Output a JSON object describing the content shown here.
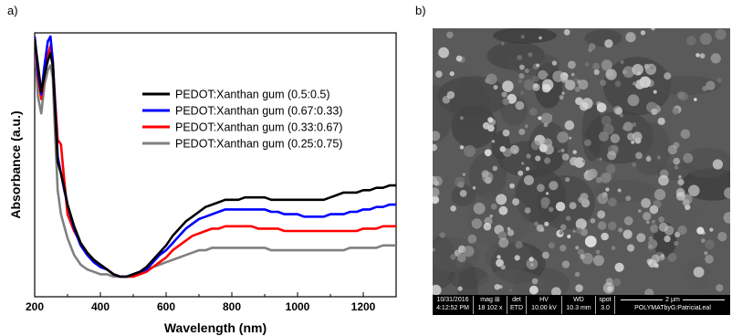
{
  "panels": {
    "a_label": "a)",
    "b_label": "b)"
  },
  "chart_data": {
    "type": "line",
    "xlabel": "Wavelength (nm)",
    "ylabel": "Absorbance (a.u.)",
    "xlim": [
      200,
      1300
    ],
    "ylim": [
      0,
      1
    ],
    "xticks": [
      200,
      400,
      600,
      800,
      1000,
      1200
    ],
    "yticks": [],
    "legend_position": "upper-right",
    "series": [
      {
        "name": "PEDOT:Xanthan gum (0.5:0.5)",
        "color": "#000000",
        "x": [
          200,
          210,
          220,
          230,
          240,
          248,
          255,
          262,
          270,
          280,
          290,
          300,
          320,
          340,
          360,
          380,
          400,
          420,
          440,
          460,
          480,
          500,
          520,
          540,
          560,
          580,
          600,
          620,
          640,
          660,
          680,
          700,
          720,
          740,
          760,
          780,
          800,
          820,
          840,
          860,
          880,
          900,
          920,
          940,
          960,
          980,
          1000,
          1020,
          1040,
          1060,
          1080,
          1100,
          1120,
          1140,
          1160,
          1180,
          1200,
          1220,
          1240,
          1260,
          1280,
          1300
        ],
        "y": [
          0.99,
          0.88,
          0.77,
          0.84,
          0.9,
          0.93,
          0.88,
          0.7,
          0.48,
          0.43,
          0.37,
          0.3,
          0.21,
          0.14,
          0.1,
          0.07,
          0.05,
          0.03,
          0.01,
          0.0,
          0.0,
          0.01,
          0.02,
          0.04,
          0.07,
          0.1,
          0.13,
          0.17,
          0.2,
          0.23,
          0.25,
          0.27,
          0.29,
          0.3,
          0.31,
          0.32,
          0.32,
          0.32,
          0.33,
          0.33,
          0.33,
          0.33,
          0.32,
          0.32,
          0.32,
          0.32,
          0.32,
          0.32,
          0.32,
          0.32,
          0.32,
          0.33,
          0.34,
          0.35,
          0.35,
          0.35,
          0.36,
          0.36,
          0.37,
          0.37,
          0.38,
          0.38
        ]
      },
      {
        "name": "PEDOT:Xanthan gum (0.67:0.33)",
        "color": "#0000ff",
        "x": [
          200,
          210,
          220,
          230,
          240,
          248,
          255,
          262,
          270,
          280,
          290,
          300,
          320,
          340,
          360,
          380,
          400,
          420,
          440,
          460,
          480,
          500,
          520,
          540,
          560,
          580,
          600,
          620,
          640,
          660,
          680,
          700,
          720,
          740,
          760,
          780,
          800,
          820,
          840,
          860,
          880,
          900,
          920,
          940,
          960,
          980,
          1000,
          1020,
          1040,
          1060,
          1080,
          1100,
          1120,
          1140,
          1160,
          1180,
          1200,
          1220,
          1240,
          1260,
          1280,
          1300
        ],
        "y": [
          1.0,
          0.85,
          0.76,
          0.88,
          0.98,
          1.0,
          0.9,
          0.72,
          0.5,
          0.43,
          0.36,
          0.3,
          0.2,
          0.13,
          0.09,
          0.06,
          0.04,
          0.03,
          0.01,
          0.0,
          0.0,
          0.01,
          0.02,
          0.03,
          0.06,
          0.09,
          0.11,
          0.14,
          0.17,
          0.2,
          0.22,
          0.24,
          0.25,
          0.26,
          0.27,
          0.28,
          0.28,
          0.28,
          0.28,
          0.28,
          0.28,
          0.28,
          0.27,
          0.27,
          0.26,
          0.26,
          0.26,
          0.25,
          0.25,
          0.25,
          0.25,
          0.26,
          0.26,
          0.26,
          0.27,
          0.27,
          0.28,
          0.28,
          0.29,
          0.29,
          0.3,
          0.3
        ]
      },
      {
        "name": "PEDOT:Xanthan gum (0.33:0.67)",
        "color": "#ff0000",
        "x": [
          200,
          210,
          220,
          230,
          240,
          248,
          255,
          262,
          270,
          280,
          290,
          300,
          320,
          340,
          360,
          380,
          400,
          420,
          440,
          460,
          480,
          500,
          520,
          540,
          560,
          580,
          600,
          620,
          640,
          660,
          680,
          700,
          720,
          740,
          760,
          780,
          800,
          820,
          840,
          860,
          880,
          900,
          920,
          940,
          960,
          980,
          1000,
          1020,
          1040,
          1060,
          1080,
          1100,
          1120,
          1140,
          1160,
          1180,
          1200,
          1220,
          1240,
          1260,
          1280,
          1300
        ],
        "y": [
          0.99,
          0.83,
          0.74,
          0.85,
          0.92,
          0.96,
          0.9,
          0.74,
          0.57,
          0.55,
          0.4,
          0.26,
          0.19,
          0.14,
          0.1,
          0.07,
          0.05,
          0.03,
          0.01,
          0.0,
          0.0,
          0.0,
          0.01,
          0.02,
          0.04,
          0.06,
          0.08,
          0.11,
          0.13,
          0.15,
          0.17,
          0.18,
          0.19,
          0.2,
          0.2,
          0.21,
          0.21,
          0.21,
          0.21,
          0.21,
          0.2,
          0.2,
          0.2,
          0.2,
          0.19,
          0.19,
          0.19,
          0.19,
          0.19,
          0.19,
          0.19,
          0.19,
          0.19,
          0.19,
          0.19,
          0.19,
          0.2,
          0.2,
          0.2,
          0.21,
          0.21,
          0.21
        ]
      },
      {
        "name": "PEDOT:Xanthan gum (0.25:0.75)",
        "color": "#808080",
        "x": [
          200,
          210,
          220,
          230,
          240,
          248,
          255,
          262,
          270,
          280,
          290,
          300,
          320,
          340,
          360,
          380,
          400,
          420,
          440,
          460,
          480,
          500,
          520,
          540,
          560,
          580,
          600,
          620,
          640,
          660,
          680,
          700,
          720,
          740,
          760,
          780,
          800,
          820,
          840,
          860,
          880,
          900,
          920,
          940,
          960,
          980,
          1000,
          1020,
          1040,
          1060,
          1080,
          1100,
          1120,
          1140,
          1160,
          1180,
          1200,
          1220,
          1240,
          1260,
          1280,
          1300
        ],
        "y": [
          0.97,
          0.75,
          0.68,
          0.8,
          0.86,
          0.88,
          0.83,
          0.6,
          0.36,
          0.26,
          0.21,
          0.16,
          0.09,
          0.05,
          0.03,
          0.02,
          0.01,
          0.01,
          0.0,
          0.0,
          0.0,
          0.01,
          0.02,
          0.03,
          0.04,
          0.05,
          0.06,
          0.07,
          0.08,
          0.09,
          0.1,
          0.11,
          0.11,
          0.12,
          0.12,
          0.12,
          0.12,
          0.12,
          0.12,
          0.12,
          0.12,
          0.12,
          0.11,
          0.11,
          0.11,
          0.11,
          0.11,
          0.11,
          0.11,
          0.11,
          0.11,
          0.11,
          0.11,
          0.11,
          0.12,
          0.12,
          0.12,
          0.12,
          0.12,
          0.13,
          0.13,
          0.13
        ]
      }
    ]
  },
  "sem_databar": {
    "date": "10/31/2016",
    "time": "4:12:52 PM",
    "mag_label": "mag ⊞",
    "mag_value": "18 102 x",
    "det_label": "det",
    "det_value": "ETD",
    "hv_label": "HV",
    "hv_value": "10.00 kV",
    "wd_label": "WD",
    "wd_value": "10.3 mm",
    "spot_label": "spot",
    "spot_value": "3.0",
    "scale_label": "2 μm",
    "operator": "POLYMATbyG:PatriciaLeal"
  }
}
